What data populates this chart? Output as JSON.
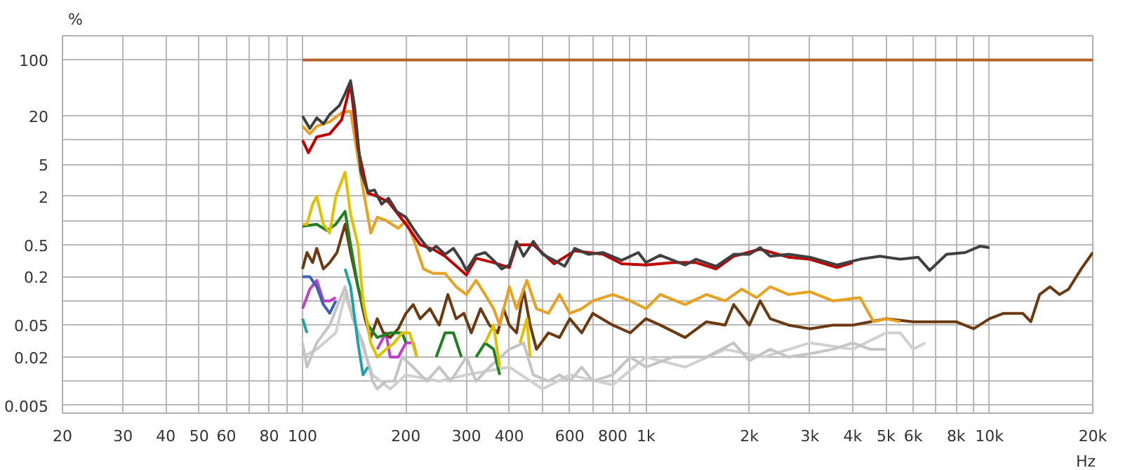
{
  "chart_data": {
    "type": "line",
    "ylabel": "%",
    "log": "xy",
    "grid": true,
    "xlabel": "Hz",
    "marker": "none",
    "line_style": "solid",
    "xlim": [
      20,
      20000
    ],
    "ylim": [
      0.004,
      200
    ],
    "xticks": [
      20,
      30,
      40,
      50,
      60,
      {
        "value": 70,
        "label": null
      },
      80,
      {
        "value": 90,
        "label": null
      },
      100,
      200,
      300,
      400,
      {
        "value": 500,
        "label": null
      },
      600,
      {
        "value": 700,
        "label": null
      },
      800,
      {
        "value": 900,
        "label": null
      },
      {
        "value": 1000,
        "label": "1k"
      },
      {
        "value": 2000,
        "label": "2k"
      },
      {
        "value": 3000,
        "label": "3k"
      },
      {
        "value": 4000,
        "label": "4k"
      },
      {
        "value": 5000,
        "label": "5k"
      },
      {
        "value": 6000,
        "label": "6k"
      },
      {
        "value": 7000,
        "label": null
      },
      {
        "value": 8000,
        "label": "8k"
      },
      {
        "value": 9000,
        "label": null
      },
      {
        "value": 10000,
        "label": "10k"
      },
      {
        "value": 20000,
        "label": "20k"
      }
    ],
    "yticks": [
      0.005,
      {
        "value": 0.01,
        "label": null
      },
      0.02,
      0.05,
      {
        "value": 0.1,
        "label": null
      },
      0.2,
      0.5,
      {
        "value": 1,
        "label": null
      },
      2,
      5,
      {
        "value": 10,
        "label": null
      },
      20,
      100
    ],
    "series": [
      {
        "color": "#b5622a",
        "x": [
          100,
          20000
        ],
        "values": [
          100,
          100
        ]
      },
      {
        "color": "#d0d0d0",
        "x": [
          100,
          110,
          125,
          133,
          145,
          160,
          180,
          200,
          250,
          300,
          400,
          500,
          600,
          800,
          1000,
          1300,
          1700,
          2200,
          3000,
          4000,
          5000,
          5500,
          6000,
          6500
        ],
        "values": [
          0.02,
          0.025,
          0.04,
          0.12,
          0.04,
          0.012,
          0.008,
          0.012,
          0.01,
          0.012,
          0.015,
          0.008,
          0.012,
          0.009,
          0.02,
          0.015,
          0.025,
          0.02,
          0.03,
          0.025,
          0.04,
          0.04,
          0.025,
          0.03
        ]
      },
      {
        "color": "#c4c4c4",
        "x": [
          100,
          103,
          110,
          120,
          133,
          140,
          150,
          160,
          165,
          175,
          185,
          195,
          210,
          230,
          250,
          270,
          300,
          320,
          350,
          400,
          440,
          470,
          520,
          560,
          600,
          650,
          700,
          800,
          900,
          1000,
          1200,
          1500,
          1800,
          2000,
          2300,
          2600,
          3000,
          3500,
          4000,
          4500,
          5000
        ],
        "values": [
          0.03,
          0.015,
          0.03,
          0.05,
          0.15,
          0.06,
          0.03,
          0.01,
          0.008,
          0.01,
          0.01,
          0.02,
          0.015,
          0.01,
          0.015,
          0.01,
          0.02,
          0.01,
          0.015,
          0.025,
          0.03,
          0.012,
          0.01,
          0.012,
          0.01,
          0.015,
          0.01,
          0.012,
          0.02,
          0.015,
          0.02,
          0.02,
          0.03,
          0.018,
          0.025,
          0.02,
          0.022,
          0.025,
          0.03,
          0.025,
          0.025
        ]
      },
      {
        "color": "#20a0a8",
        "x": [
          100,
          103,
          115,
          133,
          138,
          145,
          150,
          155
        ],
        "values": [
          0.06,
          0.04,
          null,
          0.25,
          0.15,
          0.03,
          0.012,
          0.015
        ]
      },
      {
        "color": "#c040c8",
        "x": [
          100,
          105,
          110,
          115,
          120,
          125,
          145,
          165,
          175,
          180,
          190,
          200,
          210,
          215
        ],
        "values": [
          0.08,
          0.14,
          0.18,
          0.1,
          0.1,
          0.11,
          null,
          0.025,
          0.04,
          0.02,
          0.02,
          0.03,
          0.03,
          0.02
        ]
      },
      {
        "color": "#4060b0",
        "x": [
          100,
          105,
          110,
          115,
          120,
          125
        ],
        "values": [
          0.2,
          0.2,
          0.15,
          0.09,
          0.07,
          0.1
        ]
      },
      {
        "color": "#6b3a12",
        "x": [
          100,
          103,
          107,
          110,
          115,
          120,
          126,
          133,
          138,
          145,
          152,
          158,
          165,
          172,
          180,
          190,
          200,
          210,
          220,
          235,
          250,
          265,
          280,
          295,
          310,
          330,
          350,
          370,
          385,
          400,
          420,
          440,
          460,
          480,
          520,
          560,
          600,
          650,
          700,
          800,
          900,
          1000,
          1100,
          1300,
          1500,
          1700,
          1800,
          2000,
          2150,
          2300,
          2600,
          3000,
          3500,
          4000,
          4500,
          5000,
          6000,
          7000,
          8000,
          9000,
          10000,
          11000,
          12500,
          13200,
          14000,
          15000,
          16000,
          17000,
          18500,
          20000
        ],
        "values": [
          0.25,
          0.4,
          0.3,
          0.45,
          0.25,
          0.3,
          0.4,
          0.9,
          0.4,
          0.15,
          0.06,
          0.035,
          0.06,
          0.04,
          0.035,
          0.045,
          0.07,
          0.09,
          0.06,
          0.08,
          0.05,
          0.12,
          0.06,
          0.07,
          0.04,
          0.08,
          0.05,
          0.04,
          0.08,
          0.05,
          0.04,
          0.14,
          0.05,
          0.025,
          0.04,
          0.035,
          0.06,
          0.04,
          0.07,
          0.05,
          0.04,
          0.06,
          0.05,
          0.035,
          0.055,
          0.05,
          0.09,
          0.05,
          0.1,
          0.06,
          0.05,
          0.045,
          0.05,
          0.05,
          0.055,
          0.06,
          0.055,
          0.055,
          0.055,
          0.045,
          0.06,
          0.07,
          0.07,
          0.055,
          0.12,
          0.15,
          0.12,
          0.14,
          0.25,
          0.4
        ]
      },
      {
        "color": "#208020",
        "x": [
          100,
          110,
          118,
          125,
          133,
          138,
          145,
          155,
          165,
          180,
          195,
          200,
          220,
          245,
          260,
          275,
          290,
          305,
          320,
          340,
          360,
          375
        ],
        "values": [
          0.85,
          0.9,
          0.75,
          0.9,
          1.3,
          0.5,
          0.15,
          0.05,
          0.035,
          0.04,
          0.04,
          0.03,
          null,
          0.02,
          0.04,
          0.04,
          0.02,
          null,
          0.02,
          0.03,
          0.025,
          0.012
        ]
      },
      {
        "color": "#e0c000",
        "x": [
          100,
          103,
          107,
          110,
          115,
          120,
          125,
          133,
          138,
          145,
          150,
          158,
          165,
          175,
          185,
          195,
          205,
          215,
          300,
          340,
          360,
          375,
          400,
          430,
          450,
          460
        ],
        "values": [
          0.9,
          0.9,
          1.6,
          2.0,
          0.9,
          0.7,
          2.0,
          4.0,
          1.2,
          0.5,
          0.1,
          0.03,
          0.02,
          0.025,
          0.03,
          0.04,
          0.04,
          0.02,
          null,
          0.03,
          0.05,
          0.015,
          null,
          0.03,
          0.06,
          0.02
        ]
      },
      {
        "color": "#e8a020",
        "x": [
          100,
          105,
          110,
          120,
          130,
          138,
          145,
          152,
          158,
          165,
          175,
          190,
          200,
          210,
          225,
          240,
          260,
          280,
          300,
          320,
          340,
          360,
          375,
          400,
          420,
          450,
          480,
          520,
          560,
          600,
          650,
          700,
          800,
          900,
          1000,
          1100,
          1300,
          1500,
          1700,
          1900,
          2100,
          2300,
          2600,
          3000,
          3500,
          4200,
          4600,
          5000,
          5500
        ],
        "values": [
          15,
          12,
          15,
          17,
          22,
          23,
          6,
          1.8,
          0.7,
          1.1,
          1.0,
          0.8,
          1.0,
          0.6,
          0.25,
          0.22,
          0.22,
          0.15,
          0.12,
          0.18,
          0.12,
          0.08,
          0.05,
          0.15,
          0.08,
          0.18,
          0.08,
          0.07,
          0.12,
          0.07,
          0.08,
          0.1,
          0.12,
          0.1,
          0.08,
          0.12,
          0.09,
          0.12,
          0.1,
          0.14,
          0.11,
          0.15,
          0.12,
          0.13,
          0.1,
          0.11,
          0.055,
          0.06,
          0.055
        ]
      },
      {
        "color": "#c00000",
        "x": [
          100,
          104,
          110,
          120,
          130,
          138,
          145,
          155,
          165,
          178,
          200,
          220,
          240,
          260,
          300,
          320,
          360,
          400,
          420,
          470,
          540,
          620,
          750,
          850,
          1000,
          1200,
          1400,
          1600,
          1800,
          2150,
          2600,
          3000,
          3600,
          4000
        ],
        "values": [
          10,
          7,
          11,
          12,
          18,
          50,
          8,
          2.2,
          2.0,
          1.7,
          0.9,
          0.5,
          0.44,
          0.36,
          0.21,
          0.34,
          0.3,
          0.26,
          0.5,
          0.5,
          0.29,
          0.42,
          0.38,
          0.29,
          0.28,
          0.3,
          0.3,
          0.25,
          0.36,
          0.44,
          0.35,
          0.33,
          0.26,
          0.3
        ]
      },
      {
        "color": "#404040",
        "x": [
          100,
          105,
          110,
          115,
          120,
          128,
          133,
          138,
          142,
          148,
          155,
          162,
          170,
          178,
          188,
          200,
          210,
          220,
          235,
          245,
          260,
          275,
          290,
          300,
          320,
          340,
          360,
          380,
          400,
          420,
          440,
          470,
          500,
          540,
          580,
          620,
          680,
          750,
          850,
          950,
          1000,
          1100,
          1200,
          1300,
          1400,
          1600,
          1800,
          2000,
          2150,
          2300,
          2600,
          3000,
          3600,
          4200,
          4800,
          5500,
          6200,
          6700,
          7500,
          8500,
          9400,
          10000
        ],
        "values": [
          20,
          14,
          19,
          16,
          21,
          27,
          38,
          55,
          25,
          4,
          2.3,
          2.4,
          1.6,
          1.9,
          1.3,
          1.1,
          0.8,
          0.6,
          0.42,
          0.48,
          0.38,
          0.45,
          0.32,
          0.24,
          0.37,
          0.4,
          0.32,
          0.25,
          0.28,
          0.55,
          0.36,
          0.55,
          0.38,
          0.32,
          0.27,
          0.45,
          0.38,
          0.4,
          0.32,
          0.4,
          0.3,
          0.37,
          0.32,
          0.28,
          0.33,
          0.27,
          0.38,
          0.38,
          0.46,
          0.36,
          0.38,
          0.35,
          0.28,
          0.33,
          0.36,
          0.33,
          0.35,
          0.24,
          0.38,
          0.4,
          0.48,
          0.46
        ]
      }
    ]
  }
}
